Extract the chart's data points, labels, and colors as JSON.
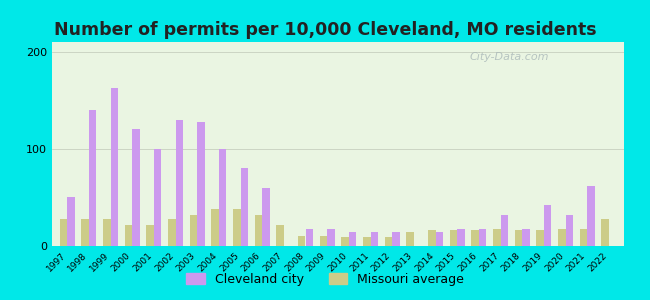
{
  "title": "Number of permits per 10,000 Cleveland, MO residents",
  "years": [
    1997,
    1998,
    1999,
    2000,
    2001,
    2002,
    2003,
    2004,
    2005,
    2006,
    2007,
    2008,
    2009,
    2010,
    2011,
    2012,
    2013,
    2014,
    2015,
    2016,
    2017,
    2018,
    2019,
    2020,
    2021,
    2022
  ],
  "cleveland": [
    50,
    140,
    163,
    120,
    100,
    130,
    128,
    100,
    80,
    60,
    0,
    18,
    18,
    14,
    14,
    14,
    0,
    14,
    18,
    18,
    32,
    18,
    42,
    32,
    62,
    0
  ],
  "missouri": [
    28,
    28,
    28,
    22,
    22,
    28,
    32,
    38,
    38,
    32,
    22,
    10,
    10,
    9,
    9,
    9,
    14,
    16,
    16,
    16,
    18,
    16,
    16,
    18,
    18,
    28
  ],
  "bar_color_cleveland": "#cc99ee",
  "bar_color_missouri": "#cccc88",
  "ylim": [
    0,
    210
  ],
  "yticks": [
    0,
    100,
    200
  ],
  "background_outer": "#00e8e8",
  "background_plot": "#eaf5e2",
  "legend_labels": [
    "Cleveland city",
    "Missouri average"
  ],
  "title_fontsize": 12.5,
  "bar_width": 0.35,
  "watermark": "City-Data.com"
}
